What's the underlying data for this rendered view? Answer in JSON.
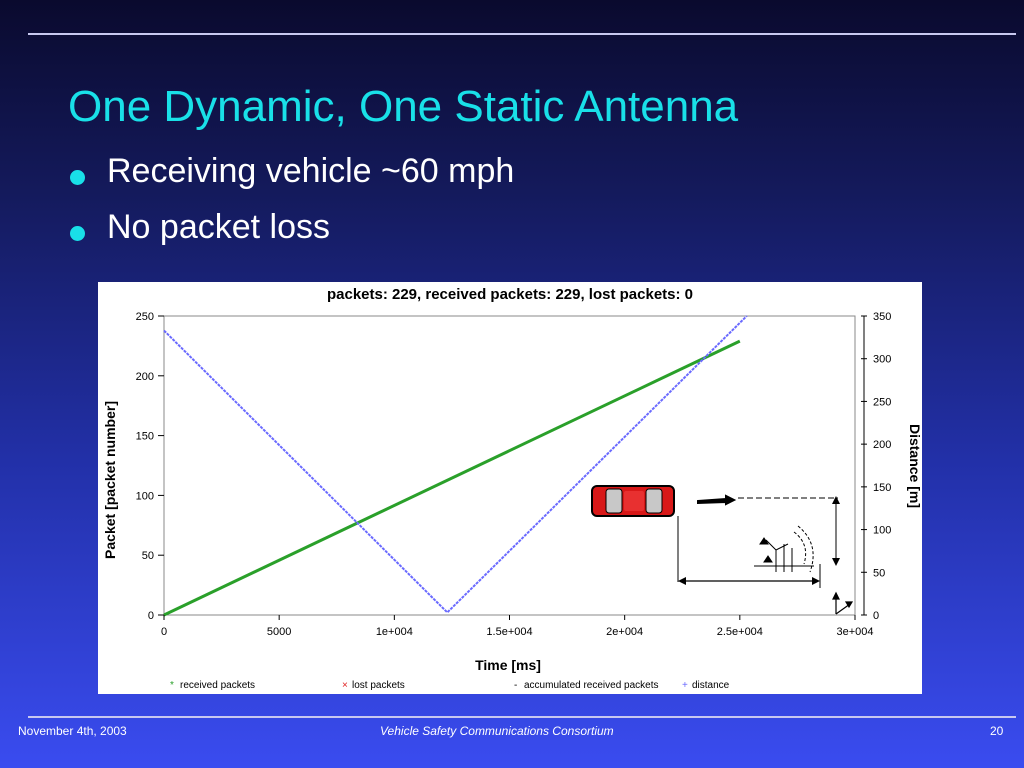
{
  "slide": {
    "title": "One Dynamic, One Static Antenna",
    "bullets": [
      "Receiving vehicle ~60 mph",
      "No packet loss"
    ],
    "footer_date": "November 4th, 2003",
    "footer_org": "Vehicle Safety Communications Consortium",
    "page_number": "20"
  },
  "colors": {
    "title": "#19e0e8",
    "received": "#2aa02a",
    "distance": "#6a6aff",
    "lost": "#e02020"
  },
  "chart_data": {
    "type": "line",
    "title": "packets: 229, received packets: 229, lost packets: 0",
    "xlabel": "Time [ms]",
    "ylabel": "Packet [packet number]",
    "y2label": "Distance [m]",
    "xlim": [
      0,
      30000
    ],
    "ylim": [
      0,
      250
    ],
    "y2lim": [
      0,
      350
    ],
    "xticks": [
      0,
      5000,
      10000,
      15000,
      20000,
      25000,
      30000
    ],
    "xtick_labels": [
      "0",
      "5000",
      "1e+004",
      "1.5e+004",
      "2e+004",
      "2.5e+004",
      "3e+004"
    ],
    "yticks": [
      0,
      50,
      100,
      150,
      200,
      250
    ],
    "y2ticks": [
      0,
      50,
      100,
      150,
      200,
      250,
      300,
      350
    ],
    "grid": true,
    "legend_position": "bottom",
    "legend": [
      "received packets",
      "lost packets",
      "accumulated received packets",
      "distance"
    ],
    "series": [
      {
        "name": "received packets",
        "axis": "left",
        "x": [
          0,
          25000
        ],
        "y": [
          0,
          229
        ]
      },
      {
        "name": "lost packets",
        "axis": "left",
        "x": [],
        "y": []
      },
      {
        "name": "accumulated received packets",
        "axis": "left",
        "x": [],
        "y": []
      },
      {
        "name": "distance",
        "axis": "right",
        "x": [
          0,
          12300,
          25300
        ],
        "y": [
          333,
          3,
          350
        ]
      }
    ]
  }
}
